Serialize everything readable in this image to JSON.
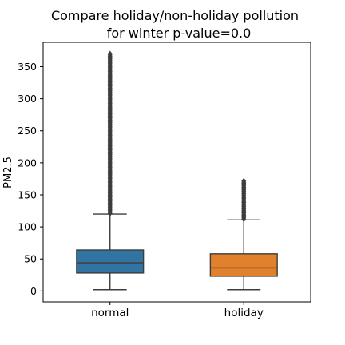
{
  "chart_data": {
    "type": "box",
    "title_lines": [
      "Compare holiday/non-holiday pollution",
      "for winter p-value=0.0"
    ],
    "xlabel": "",
    "ylabel": "PM2.5",
    "ylim": [
      -17,
      388
    ],
    "yticks": [
      0,
      50,
      100,
      150,
      200,
      250,
      300,
      350
    ],
    "categories": [
      "normal",
      "holiday"
    ],
    "boxes": [
      {
        "label": "normal",
        "color": "#3274a1",
        "whisker_low": 2,
        "q1": 28,
        "median": 44,
        "q3": 64,
        "whisker_high": 120,
        "outliers_range": [
          121,
          372
        ]
      },
      {
        "label": "holiday",
        "color": "#e1812c",
        "whisker_low": 2,
        "q1": 23,
        "median": 36,
        "q3": 58,
        "whisker_high": 111,
        "outliers_range": [
          112,
          172
        ]
      }
    ]
  }
}
